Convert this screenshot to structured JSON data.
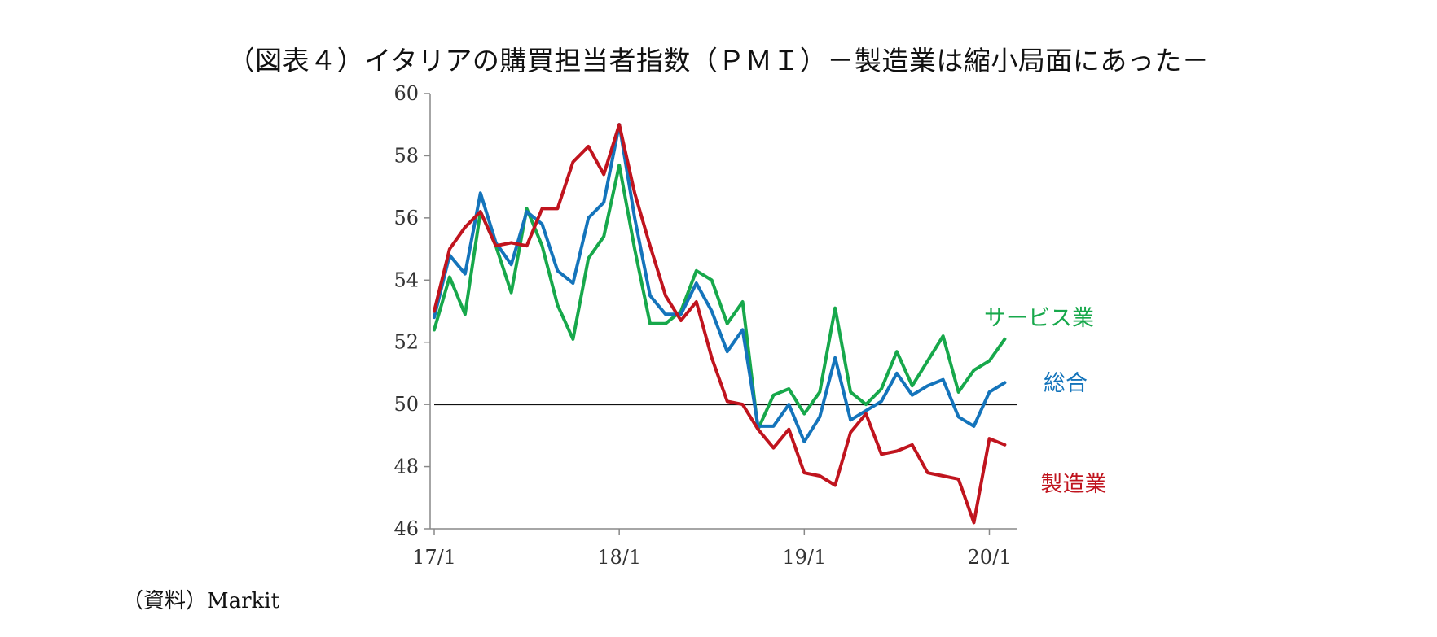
{
  "title": "（図表４）イタリアの購買担当者指数（ＰＭＩ）－製造業は縮小局面にあった－",
  "source": "（資料）Markit",
  "colors": {
    "manufacturing": "#c0141e",
    "composite": "#1474bb",
    "services": "#17a84b",
    "axis": "#888888",
    "reference": "#111111"
  },
  "chart_data": {
    "type": "line",
    "title": "（図表４）イタリアの購買担当者指数（ＰＭＩ）－製造業は縮小局面にあった－",
    "xlabel": "",
    "ylabel": "",
    "ylim": [
      46,
      60
    ],
    "yticks": [
      46,
      48,
      50,
      52,
      54,
      56,
      58,
      60
    ],
    "x_tick_labels": [
      "17/1",
      "18/1",
      "19/1",
      "20/1"
    ],
    "x_tick_index": [
      0,
      12,
      24,
      36
    ],
    "x": [
      "2017-01",
      "2017-02",
      "2017-03",
      "2017-04",
      "2017-05",
      "2017-06",
      "2017-07",
      "2017-08",
      "2017-09",
      "2017-10",
      "2017-11",
      "2017-12",
      "2018-01",
      "2018-02",
      "2018-03",
      "2018-04",
      "2018-05",
      "2018-06",
      "2018-07",
      "2018-08",
      "2018-09",
      "2018-10",
      "2018-11",
      "2018-12",
      "2019-01",
      "2019-02",
      "2019-03",
      "2019-04",
      "2019-05",
      "2019-06",
      "2019-07",
      "2019-08",
      "2019-09",
      "2019-10",
      "2019-11",
      "2019-12",
      "2020-01",
      "2020-02"
    ],
    "reference_line": 50,
    "grid": false,
    "legend": "direct labels at right",
    "series": [
      {
        "key": "services",
        "name": "サービス業",
        "values": [
          52.4,
          54.1,
          52.9,
          56.2,
          55.1,
          53.6,
          56.3,
          55.1,
          53.2,
          52.1,
          54.7,
          55.4,
          57.7,
          55.0,
          52.6,
          52.6,
          53.0,
          54.3,
          54.0,
          52.6,
          53.3,
          49.2,
          50.3,
          50.5,
          49.7,
          50.4,
          53.1,
          50.4,
          50.0,
          50.5,
          51.7,
          50.6,
          51.4,
          52.2,
          50.4,
          51.1,
          51.4,
          52.1
        ]
      },
      {
        "key": "composite",
        "name": "総合",
        "values": [
          52.8,
          54.8,
          54.2,
          56.8,
          55.2,
          54.5,
          56.2,
          55.8,
          54.3,
          53.9,
          56.0,
          56.5,
          59.0,
          56.0,
          53.5,
          52.9,
          52.9,
          53.9,
          53.0,
          51.7,
          52.4,
          49.3,
          49.3,
          50.0,
          48.8,
          49.6,
          51.5,
          49.5,
          49.8,
          50.1,
          51.0,
          50.3,
          50.6,
          50.8,
          49.6,
          49.3,
          50.4,
          50.7
        ]
      },
      {
        "key": "manufacturing",
        "name": "製造業",
        "values": [
          53.0,
          55.0,
          55.7,
          56.2,
          55.1,
          55.2,
          55.1,
          56.3,
          56.3,
          57.8,
          58.3,
          57.4,
          59.0,
          56.8,
          55.1,
          53.5,
          52.7,
          53.3,
          51.5,
          50.1,
          50.0,
          49.2,
          48.6,
          49.2,
          47.8,
          47.7,
          47.4,
          49.1,
          49.7,
          48.4,
          48.5,
          48.7,
          47.8,
          47.7,
          47.6,
          46.2,
          48.9,
          48.7
        ]
      }
    ]
  }
}
